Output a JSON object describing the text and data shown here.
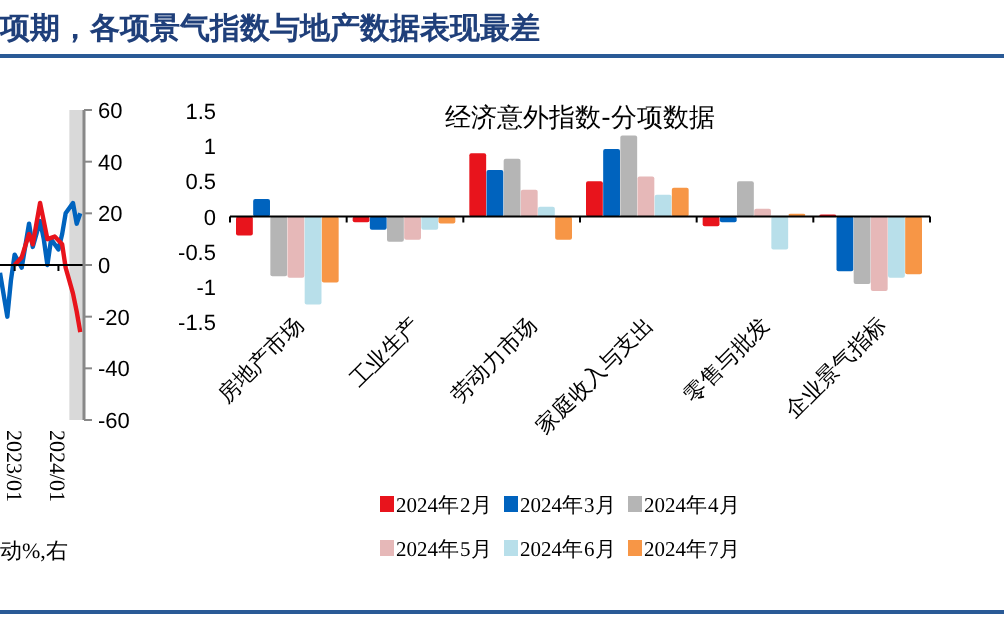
{
  "chart_data": [
    {
      "type": "line",
      "title": "项期，各项景气指数与地产数据表现最差",
      "annotations": [
        "动%,右"
      ],
      "xlim": [
        "2022-09",
        "2024-08"
      ],
      "xticks": [
        {
          "value": "2023-01",
          "label": "2023/01"
        },
        {
          "value": "2024-01",
          "label": "2024/01"
        }
      ],
      "ylim": [
        -60,
        60
      ],
      "yticks": [
        60,
        40,
        20,
        0,
        -20,
        -40,
        -60
      ],
      "bands": [
        {
          "axis": "x",
          "from": "2024-04",
          "to": "2024-08",
          "color": "#d9d9d9"
        }
      ],
      "series": [
        {
          "color": "#0063be",
          "x": [
            "2022-09",
            "2022-11",
            "2022-12",
            "2023-01",
            "2023-03",
            "2023-05",
            "2023-06",
            "2023-08",
            "2023-09",
            "2023-10",
            "2023-11",
            "2024-01",
            "2024-02",
            "2024-03",
            "2024-05",
            "2024-06",
            "2024-07"
          ],
          "values": [
            -3,
            -20,
            -6,
            4,
            -1,
            16,
            7,
            17,
            10,
            0,
            10,
            6,
            12,
            20,
            24,
            16,
            20
          ]
        },
        {
          "color": "#e8141c",
          "x": [
            "2023-01",
            "2023-03",
            "2023-05",
            "2023-06",
            "2023-08",
            "2023-09",
            "2023-10",
            "2023-12",
            "2024-02",
            "2024-03",
            "2024-05",
            "2024-06",
            "2024-07"
          ],
          "values": [
            0,
            3,
            12,
            8,
            24,
            17,
            10,
            11,
            8,
            -1,
            -11,
            -18,
            -26
          ]
        }
      ]
    },
    {
      "type": "bar",
      "title": "经济意外指数-分项数据",
      "categories": [
        "房地产市场",
        "工业生产",
        "劳动力市场",
        "家庭收入与支出",
        "零售与批发",
        "企业景气指标"
      ],
      "ylim": [
        -1.5,
        1.5
      ],
      "yticks": [
        1.5,
        1,
        0.5,
        0,
        -0.5,
        -1,
        -1.5
      ],
      "legend": "bottom",
      "series": [
        {
          "name": "2024年2月",
          "color": "#e8141c",
          "values": [
            -0.27,
            -0.08,
            0.9,
            0.5,
            -0.14,
            0.03
          ]
        },
        {
          "name": "2024年3月",
          "color": "#0063be",
          "values": [
            0.25,
            -0.19,
            0.66,
            0.96,
            -0.08,
            -0.78
          ]
        },
        {
          "name": "2024年4月",
          "color": "#b5b5b5",
          "values": [
            -0.85,
            -0.36,
            0.82,
            1.15,
            0.5,
            -0.96
          ]
        },
        {
          "name": "2024年5月",
          "color": "#e6b8b8",
          "values": [
            -0.87,
            -0.33,
            0.38,
            0.57,
            0.11,
            -1.06
          ]
        },
        {
          "name": "2024年6月",
          "color": "#b8dfea",
          "values": [
            -1.25,
            -0.19,
            0.14,
            0.31,
            -0.47,
            -0.87
          ]
        },
        {
          "name": "2024年7月",
          "color": "#f79646",
          "values": [
            -0.94,
            -0.1,
            -0.33,
            0.41,
            0.04,
            -0.82
          ]
        }
      ]
    }
  ]
}
